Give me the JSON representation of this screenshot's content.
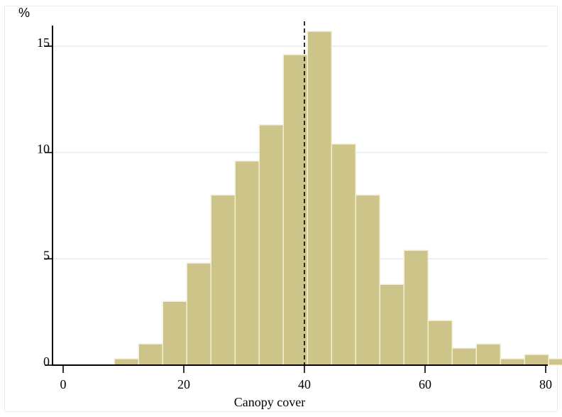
{
  "chart_data": {
    "type": "bar",
    "subtype": "histogram",
    "y_unit_label": "%",
    "xlabel": "Canopy cover",
    "ylabel": "",
    "title": "",
    "xlim": [
      -2,
      80
    ],
    "ylim": [
      0,
      16
    ],
    "bin_width": 4,
    "bins": [
      {
        "start": 8.5,
        "value": 0.3
      },
      {
        "start": 12.5,
        "value": 1.0
      },
      {
        "start": 16.5,
        "value": 3.0
      },
      {
        "start": 20.5,
        "value": 4.8
      },
      {
        "start": 24.5,
        "value": 8.0
      },
      {
        "start": 28.5,
        "value": 9.6
      },
      {
        "start": 32.5,
        "value": 11.3
      },
      {
        "start": 36.5,
        "value": 14.6
      },
      {
        "start": 40.5,
        "value": 15.7
      },
      {
        "start": 44.5,
        "value": 10.4
      },
      {
        "start": 48.5,
        "value": 8.0
      },
      {
        "start": 52.5,
        "value": 3.8
      },
      {
        "start": 56.5,
        "value": 5.4
      },
      {
        "start": 60.5,
        "value": 2.1
      },
      {
        "start": 64.5,
        "value": 0.8
      },
      {
        "start": 68.5,
        "value": 1.0
      },
      {
        "start": 72.5,
        "value": 0.3
      },
      {
        "start": 76.5,
        "value": 0.5
      },
      {
        "start": 80.5,
        "value": 0.3
      }
    ],
    "x_ticks": [
      {
        "value": 0,
        "label": "0"
      },
      {
        "value": 20,
        "label": "20"
      },
      {
        "value": 40,
        "label": "40"
      },
      {
        "value": 60,
        "label": "60"
      },
      {
        "value": 80,
        "label": "80"
      }
    ],
    "y_ticks": [
      {
        "value": 0,
        "label": "0"
      },
      {
        "value": 5,
        "label": "5"
      },
      {
        "value": 10,
        "label": "10"
      },
      {
        "value": 15,
        "label": "15"
      }
    ],
    "reference_line": {
      "x": 40,
      "style": "dashed"
    },
    "grid": {
      "horizontal": true,
      "vertical": false
    },
    "colors": {
      "bar_fill": "#cdc48a",
      "bar_stroke": "#f3efd6",
      "grid": "#e3eded",
      "axis": "#000000",
      "reference_line": "#000000"
    }
  }
}
